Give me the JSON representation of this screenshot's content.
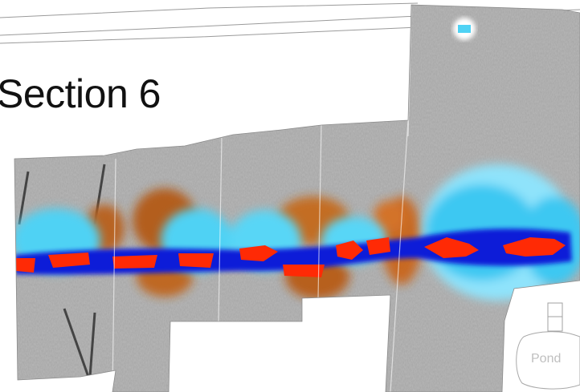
{
  "map": {
    "title": "Section 6",
    "labels": {
      "pond": "Pond"
    }
  },
  "colors": {
    "background": "#ffffff",
    "survey_grey_light": "#c8c8c8",
    "survey_grey_dark": "#5a5a5a",
    "anomaly_positive_strong": "#ff2200",
    "anomaly_positive": "#c8641a",
    "anomaly_negative_strong": "#0a1edc",
    "anomaly_negative": "#1ec8f0",
    "anomaly_negative_faint": "#bff0ff",
    "outline": "#999999"
  }
}
